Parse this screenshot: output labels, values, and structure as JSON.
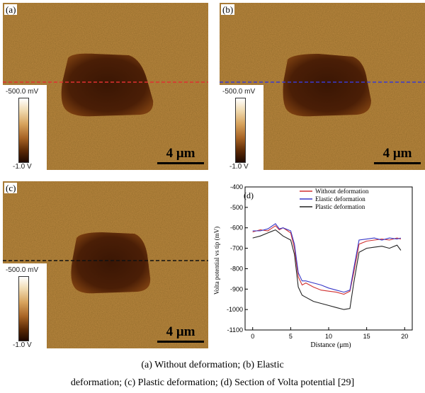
{
  "panels": [
    {
      "tag": "(a)",
      "colorbar_top": "-500.0 mV",
      "colorbar_bottom": "-1.0 V",
      "scale": "4 μm",
      "line_color": "#e03030"
    },
    {
      "tag": "(b)",
      "colorbar_top": "-500.0 mV",
      "colorbar_bottom": "-1.0 V",
      "scale": "4 μm",
      "line_color": "#3a3ad0"
    },
    {
      "tag": "(c)",
      "colorbar_top": "-500.0 mV",
      "colorbar_bottom": "-1.0 V",
      "scale": "4 μm",
      "line_color": "#111111"
    }
  ],
  "chart_tag": "(d)",
  "chart_data": {
    "type": "line",
    "xlabel": "Distance (μm)",
    "ylabel": "Volta potential vs tip (mV)",
    "xlim": [
      -1,
      21
    ],
    "ylim": [
      -1100,
      -400
    ],
    "xticks": [
      "0",
      "5",
      "10",
      "15",
      "20"
    ],
    "yticks": [
      "-400",
      "-500",
      "-600",
      "-700",
      "-800",
      "-900",
      "-1000",
      "-1100"
    ],
    "legend_position": "top-right",
    "series": [
      {
        "name": "Without deformation",
        "color": "#d03030",
        "x": [
          0,
          1,
          2,
          3,
          3.5,
          4,
          5,
          5.5,
          6,
          6.5,
          7,
          8,
          9,
          10,
          11,
          12,
          12.8,
          13.3,
          14,
          15,
          16,
          17,
          18,
          19,
          19.5
        ],
        "y": [
          -620,
          -610,
          -615,
          -590,
          -610,
          -600,
          -625,
          -700,
          -840,
          -880,
          -870,
          -890,
          -905,
          -910,
          -915,
          -925,
          -910,
          -820,
          -680,
          -665,
          -660,
          -655,
          -660,
          -650,
          -655
        ]
      },
      {
        "name": "Elastic deformation",
        "color": "#3838c8",
        "x": [
          0,
          1,
          2,
          3,
          3.5,
          4,
          5,
          5.5,
          6,
          6.5,
          7,
          8,
          9,
          10,
          11,
          12,
          12.8,
          13.3,
          14,
          15,
          16,
          17,
          18,
          19,
          19.5
        ],
        "y": [
          -615,
          -615,
          -605,
          -580,
          -605,
          -600,
          -615,
          -680,
          -820,
          -860,
          -860,
          -870,
          -880,
          -895,
          -905,
          -915,
          -905,
          -800,
          -660,
          -655,
          -650,
          -660,
          -650,
          -655,
          -650
        ]
      },
      {
        "name": "Plastic deformation",
        "color": "#222222",
        "x": [
          0,
          1,
          2,
          3,
          3.5,
          4,
          5,
          5.5,
          6,
          6.5,
          7,
          8,
          9,
          10,
          11,
          12,
          12.8,
          13.3,
          14,
          15,
          16,
          17,
          18,
          19,
          19.5
        ],
        "y": [
          -650,
          -640,
          -625,
          -610,
          -625,
          -640,
          -660,
          -730,
          -890,
          -930,
          -940,
          -960,
          -970,
          -980,
          -990,
          -1000,
          -995,
          -870,
          -720,
          -700,
          -695,
          -690,
          -700,
          -685,
          -710
        ]
      }
    ]
  },
  "caption": {
    "line1": "(a) Without deformation; (b) Elastic",
    "line2": "deformation; (c) Plastic deformation; (d) Section of Volta potential [29]"
  }
}
